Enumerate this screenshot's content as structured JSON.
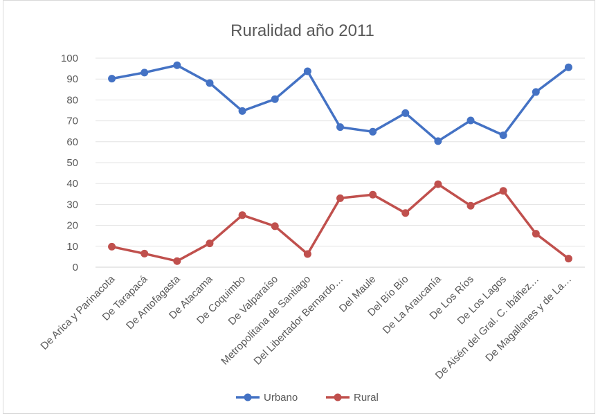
{
  "chart_data": {
    "type": "line",
    "title": "Ruralidad año 2011",
    "xlabel": "",
    "ylabel": "",
    "ylim": [
      0,
      100
    ],
    "yticks": [
      0,
      10,
      20,
      30,
      40,
      50,
      60,
      70,
      80,
      90,
      100
    ],
    "grid": true,
    "legend_position": "bottom",
    "categories": [
      "De Arica y Parinacota",
      "De Tarapacá",
      "De Antofagasta",
      "De Atacama",
      "De Coquimbo",
      "De Valparaíso",
      "Metropolitana de Santiago",
      "Del Libertador Bernardo…",
      "Del Maule",
      "Del Bío Bío",
      "De La Araucanía",
      "De Los Ríos",
      "De Los Lagos",
      "De Aisén del Gral. C. Ibáñez…",
      "De Magallanes y de La…"
    ],
    "series": [
      {
        "name": "Urbano",
        "color": "#4472c4",
        "values": [
          90.2,
          93.1,
          96.6,
          88.1,
          74.7,
          80.4,
          93.7,
          67.0,
          64.8,
          73.7,
          60.3,
          70.2,
          63.1,
          83.8,
          95.6
        ]
      },
      {
        "name": "Rural",
        "color": "#c0504d",
        "values": [
          9.8,
          6.5,
          2.9,
          11.4,
          24.9,
          19.6,
          6.3,
          33.0,
          34.7,
          25.9,
          39.7,
          29.4,
          36.5,
          16.0,
          4.1
        ]
      }
    ]
  }
}
